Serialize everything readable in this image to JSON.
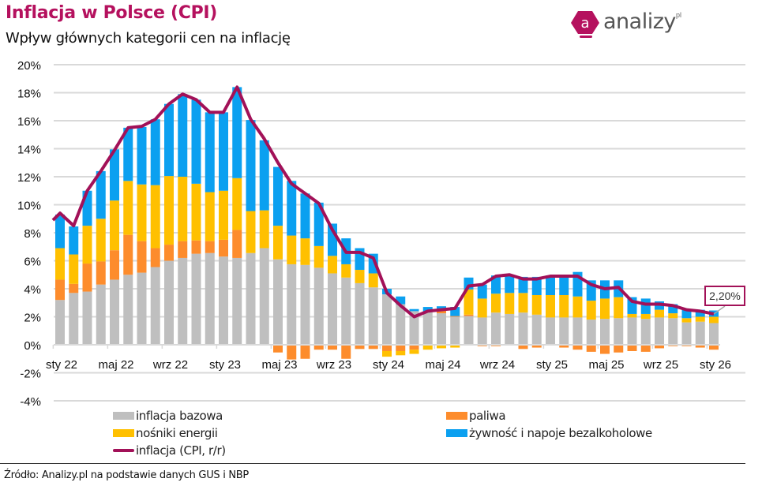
{
  "header": {
    "title": "Inflacja w Polsce (CPI)",
    "subtitle": "Wpływ głównych kategorii cen na inflację"
  },
  "logo": {
    "icon_letter": "a",
    "text": "analizy",
    "suffix": "pl",
    "color": "#b5115e"
  },
  "footer": {
    "source": "Źródło: Analizy.pl na podstawie danych GUS i NBP"
  },
  "callout": {
    "label": "2,20%"
  },
  "chart_data": {
    "type": "bar",
    "stacked": true,
    "title": "Inflacja w Polsce (CPI)",
    "subtitle": "Wpływ głównych kategorii cen na inflację",
    "xlabel": "",
    "ylabel": "",
    "ylim": [
      -4,
      20
    ],
    "ytick_step": 2,
    "ytick_labels": [
      "-4%",
      "-2%",
      "0%",
      "2%",
      "4%",
      "6%",
      "8%",
      "10%",
      "12%",
      "14%",
      "16%",
      "18%",
      "20%"
    ],
    "grid": true,
    "legend_position": "bottom",
    "categories": [
      "2022-01",
      "2022-02",
      "2022-03",
      "2022-04",
      "2022-05",
      "2022-06",
      "2022-07",
      "2022-08",
      "2022-09",
      "2022-10",
      "2022-11",
      "2022-12",
      "2023-01",
      "2023-02",
      "2023-03",
      "2023-04",
      "2023-05",
      "2023-06",
      "2023-07",
      "2023-08",
      "2023-09",
      "2023-10",
      "2023-11",
      "2023-12",
      "2024-01",
      "2024-02",
      "2024-03",
      "2024-04",
      "2024-05",
      "2024-06",
      "2024-07",
      "2024-08",
      "2024-09",
      "2024-10",
      "2024-11",
      "2024-12",
      "2025-01",
      "2025-02",
      "2025-03",
      "2025-04",
      "2025-05",
      "2025-06",
      "2025-07",
      "2025-08",
      "2025-09",
      "2025-10",
      "2025-11",
      "2025-12",
      "2026-01"
    ],
    "xtick_labels": [
      {
        "index": 0,
        "label": "sty 22"
      },
      {
        "index": 4,
        "label": "maj 22"
      },
      {
        "index": 8,
        "label": "wrz 22"
      },
      {
        "index": 12,
        "label": "sty 23"
      },
      {
        "index": 16,
        "label": "maj 23"
      },
      {
        "index": 20,
        "label": "wrz 23"
      },
      {
        "index": 24,
        "label": "sty 24"
      },
      {
        "index": 28,
        "label": "maj 24"
      },
      {
        "index": 32,
        "label": "wrz 24"
      },
      {
        "index": 36,
        "label": "sty 25"
      },
      {
        "index": 40,
        "label": "maj 25"
      },
      {
        "index": 44,
        "label": "wrz 25"
      },
      {
        "index": 48,
        "label": "sty 26"
      }
    ],
    "series": [
      {
        "name": "inflacja bazowa",
        "type": "bar",
        "color": "#bfbfbf",
        "values": [
          3.2,
          3.7,
          3.8,
          4.3,
          4.65,
          5.0,
          5.15,
          5.55,
          6.0,
          6.2,
          6.5,
          6.55,
          6.3,
          6.2,
          6.55,
          6.9,
          6.1,
          5.75,
          5.7,
          5.5,
          5.1,
          4.8,
          4.4,
          4.1,
          3.6,
          2.9,
          2.4,
          2.35,
          2.25,
          2.0,
          2.05,
          1.95,
          2.3,
          2.2,
          2.3,
          2.15,
          1.95,
          1.95,
          1.95,
          1.8,
          1.85,
          1.9,
          1.95,
          1.85,
          1.95,
          1.9,
          1.6,
          1.65,
          1.55
        ]
      },
      {
        "name": "paliwa",
        "type": "bar",
        "color": "#fd8c2c",
        "values": [
          1.45,
          0.65,
          2.0,
          1.65,
          2.1,
          2.85,
          2.25,
          1.35,
          1.15,
          1.2,
          0.95,
          0.85,
          1.2,
          2.0,
          0,
          0,
          -0.55,
          -1.05,
          -1.0,
          -0.35,
          -0.35,
          -1.0,
          -0.3,
          -0.3,
          -0.45,
          -0.45,
          -0.35,
          0,
          0.3,
          0.05,
          0.1,
          -0.1,
          -0.1,
          0,
          -0.3,
          -0.2,
          0,
          -0.2,
          -0.35,
          -0.5,
          -0.65,
          -0.55,
          -0.45,
          -0.5,
          -0.25,
          -0.1,
          -0.1,
          -0.2,
          -0.35
        ]
      },
      {
        "name": "nośniki energii",
        "type": "bar",
        "color": "#ffc000",
        "values": [
          2.25,
          2.1,
          2.7,
          3.05,
          3.55,
          3.85,
          4.05,
          4.5,
          4.9,
          4.6,
          4.05,
          3.5,
          3.5,
          3.7,
          3.0,
          2.7,
          2.4,
          2.05,
          1.9,
          1.55,
          1.25,
          0.95,
          0.95,
          1.0,
          -0.4,
          -0.3,
          -0.3,
          -0.35,
          -0.25,
          -0.2,
          1.8,
          1.35,
          1.35,
          1.5,
          1.4,
          1.4,
          1.6,
          1.6,
          1.5,
          1.35,
          1.45,
          1.5,
          0.25,
          0.35,
          0.55,
          0.35,
          0.3,
          0.35,
          0.45
        ]
      },
      {
        "name": "żywność i napoje bezalkoholowe",
        "type": "bar",
        "color": "#0ba0f0",
        "values": [
          2.4,
          2.0,
          2.5,
          3.4,
          3.65,
          3.8,
          4.1,
          4.7,
          5.15,
          5.9,
          6.0,
          5.7,
          5.6,
          6.5,
          6.5,
          5.0,
          4.2,
          3.9,
          3.2,
          3.1,
          2.3,
          1.85,
          1.55,
          1.4,
          0.4,
          0.55,
          0.15,
          0.35,
          0.2,
          0.65,
          0.85,
          1.0,
          1.3,
          1.3,
          1.15,
          1.3,
          1.4,
          1.35,
          1.75,
          1.45,
          1.3,
          1.2,
          1.2,
          1.1,
          0.6,
          0.65,
          0.6,
          0.5,
          0.45
        ]
      },
      {
        "name": "inflacja (CPI, r/r)",
        "type": "line",
        "color": "#a21158",
        "values": [
          9.4,
          8.5,
          11.0,
          12.4,
          13.9,
          15.5,
          15.6,
          16.1,
          17.2,
          17.9,
          17.5,
          16.6,
          16.6,
          18.4,
          16.1,
          14.7,
          13.0,
          11.5,
          10.8,
          10.1,
          8.2,
          6.6,
          6.6,
          6.2,
          3.7,
          2.8,
          2.0,
          2.4,
          2.5,
          2.6,
          4.2,
          4.3,
          4.9,
          5.0,
          4.7,
          4.7,
          4.9,
          4.9,
          4.9,
          4.3,
          4.0,
          4.1,
          3.1,
          2.9,
          2.9,
          2.8,
          2.5,
          2.4,
          2.2
        ]
      }
    ],
    "annotations": [
      {
        "index": 48,
        "series": "inflacja (CPI, r/r)",
        "label": "2,20%"
      }
    ],
    "legend": [
      {
        "name": "inflacja bazowa",
        "color": "#bfbfbf",
        "kind": "bar"
      },
      {
        "name": "paliwa",
        "color": "#fd8c2c",
        "kind": "bar"
      },
      {
        "name": "nośniki energii",
        "color": "#ffc000",
        "kind": "bar"
      },
      {
        "name": "żywność i napoje bezalkoholowe",
        "color": "#0ba0f0",
        "kind": "bar"
      },
      {
        "name": "inflacja (CPI, r/r)",
        "color": "#a21158",
        "kind": "line"
      }
    ]
  }
}
